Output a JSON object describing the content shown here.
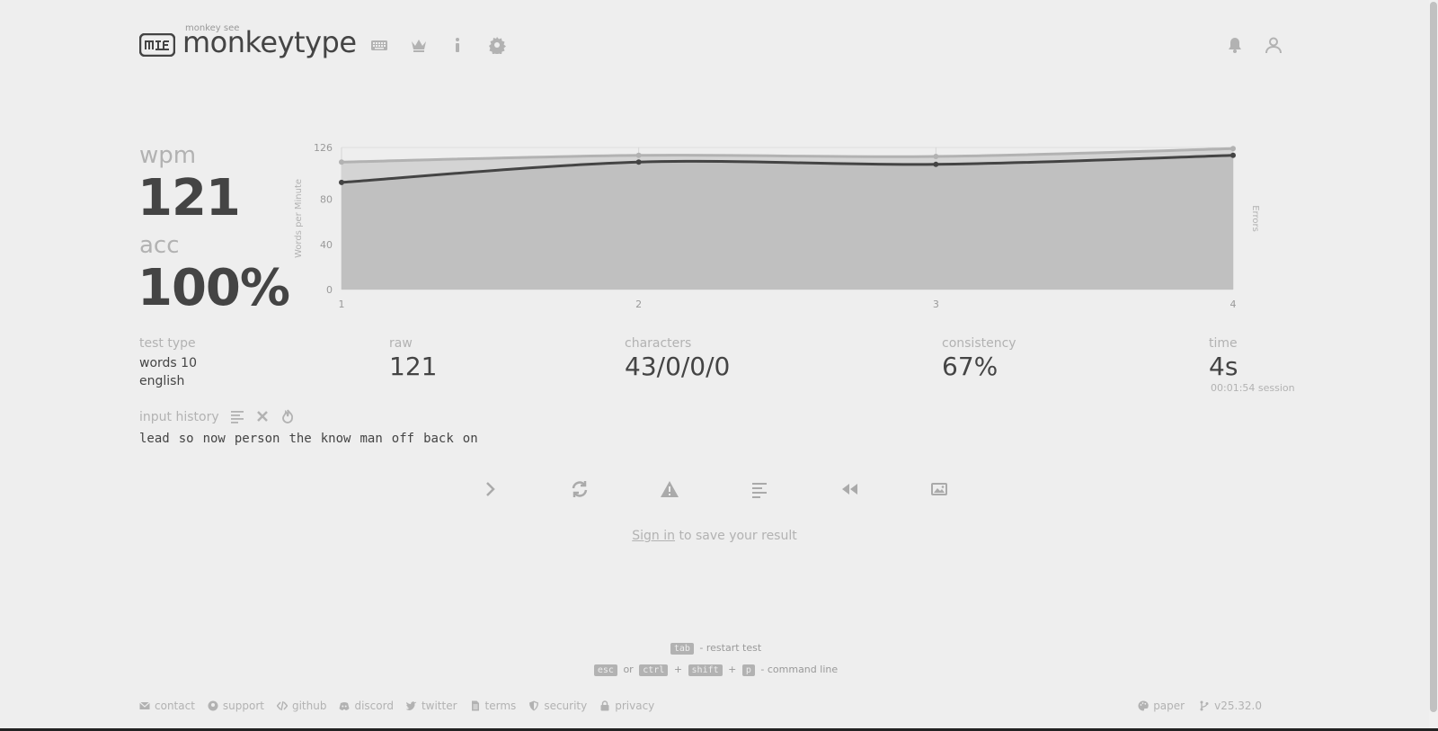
{
  "header": {
    "subtitle": "monkey see",
    "title": "monkeytype"
  },
  "result": {
    "wpm_label": "wpm",
    "wpm_value": "121",
    "acc_label": "acc",
    "acc_value": "100%"
  },
  "chart_data": {
    "type": "line",
    "ylabel": "Words per Minute",
    "y2label": "Errors",
    "x": [
      1,
      2,
      3,
      4
    ],
    "ylim": [
      0,
      126
    ],
    "yticks": [
      0,
      40,
      80,
      126
    ],
    "series": [
      {
        "name": "wpm",
        "values": [
          95,
          113,
          111,
          119
        ]
      },
      {
        "name": "raw",
        "values": [
          113,
          119,
          118,
          125
        ]
      }
    ],
    "grid": true
  },
  "stats": {
    "test_type_label": "test type",
    "test_type_line1": "words 10",
    "test_type_line2": "english",
    "raw_label": "raw",
    "raw_value": "121",
    "characters_label": "characters",
    "characters_value": "43/0/0/0",
    "consistency_label": "consistency",
    "consistency_value": "67%",
    "time_label": "time",
    "time_value": "4s",
    "session": "00:01:54 session"
  },
  "history": {
    "label": "input history",
    "words": [
      "lead",
      "so",
      "now",
      "person",
      "the",
      "know",
      "man",
      "off",
      "back",
      "on"
    ]
  },
  "signin": {
    "link": "Sign in",
    "rest": " to save your result"
  },
  "hints": {
    "tab_key": "tab",
    "restart": "- restart test",
    "esc_key": "esc",
    "or": "or",
    "ctrl_key": "ctrl",
    "plus": "+",
    "shift_key": "shift",
    "p_key": "p",
    "command_line": "- command line"
  },
  "footer": {
    "contact": "contact",
    "support": "support",
    "github": "github",
    "discord": "discord",
    "twitter": "twitter",
    "terms": "terms",
    "security": "security",
    "privacy": "privacy",
    "theme": "paper",
    "version": "v25.32.0"
  },
  "colors": {
    "background": "#eeeeee",
    "text": "#444444",
    "sub": "#b2b2b2",
    "chart_fill": "#c0c0c0"
  }
}
